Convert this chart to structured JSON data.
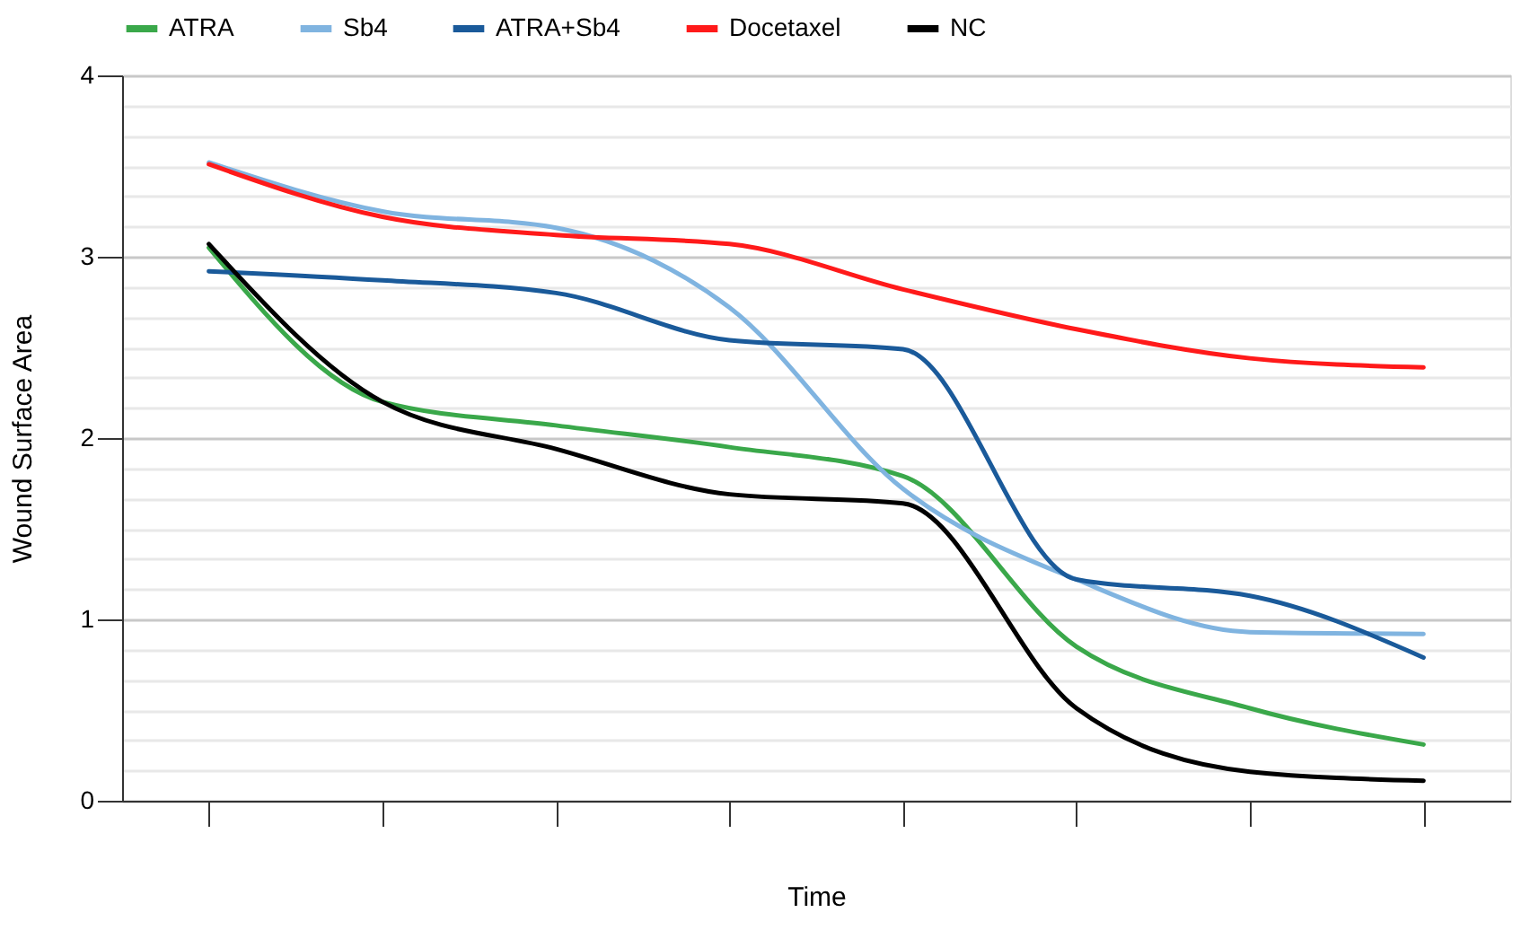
{
  "chart_data": {
    "type": "line",
    "xlabel": "Time",
    "ylabel": "Wound Surface Area",
    "categories": [
      null,
      null,
      null,
      null,
      null,
      null,
      null,
      null
    ],
    "series": [
      {
        "name": "ATRA",
        "color": "#3aa84a",
        "values": [
          3.05,
          2.2,
          2.07,
          1.95,
          1.79,
          0.85,
          0.51,
          0.31
        ]
      },
      {
        "name": "Sb4",
        "color": "#80b4e0",
        "values": [
          3.52,
          3.25,
          3.16,
          2.72,
          1.72,
          1.22,
          0.93,
          0.92
        ]
      },
      {
        "name": "ATRA+Sb4",
        "color": "#1a5a9a",
        "values": [
          2.92,
          2.87,
          2.8,
          2.54,
          2.49,
          1.22,
          1.13,
          0.79
        ]
      },
      {
        "name": "Docetaxel",
        "color": "#ff1a1a",
        "values": [
          3.51,
          3.22,
          3.12,
          3.07,
          2.82,
          2.6,
          2.44,
          2.39
        ]
      },
      {
        "name": "NC",
        "color": "#000000",
        "values": [
          3.07,
          2.2,
          1.94,
          1.69,
          1.64,
          0.51,
          0.16,
          0.11
        ]
      }
    ],
    "ylim": [
      0,
      4
    ],
    "yticks": [
      0,
      {
        "value": 0.1667,
        "label": null
      },
      {
        "value": 0.3333,
        "label": null
      },
      {
        "value": 0.5,
        "label": null
      },
      {
        "value": 0.6667,
        "label": null
      },
      {
        "value": 0.8333,
        "label": null
      },
      1,
      {
        "value": 1.1667,
        "label": null
      },
      {
        "value": 1.3333,
        "label": null
      },
      {
        "value": 1.5,
        "label": null
      },
      {
        "value": 1.6667,
        "label": null
      },
      {
        "value": 1.8333,
        "label": null
      },
      2,
      {
        "value": 2.1667,
        "label": null
      },
      {
        "value": 2.3333,
        "label": null
      },
      {
        "value": 2.5,
        "label": null
      },
      {
        "value": 2.6667,
        "label": null
      },
      {
        "value": 2.8333,
        "label": null
      },
      3,
      {
        "value": 3.1667,
        "label": null
      },
      {
        "value": 3.3333,
        "label": null
      },
      {
        "value": 3.5,
        "label": null
      },
      {
        "value": 3.6667,
        "label": null
      },
      {
        "value": 3.8333,
        "label": null
      },
      4
    ],
    "grid": "y",
    "legend": "top",
    "marker": "none",
    "line_style": "solid"
  }
}
